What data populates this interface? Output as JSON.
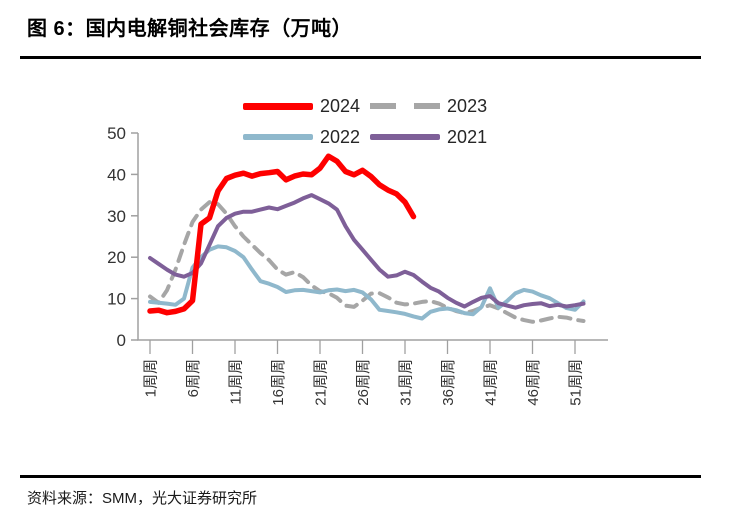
{
  "figure": {
    "title": "图 6：国内电解铜社会库存（万吨）",
    "source": "资料来源：SMM，光大证券研究所"
  },
  "chart_data": {
    "type": "line",
    "title": "国内电解铜社会库存（万吨）",
    "y_unit": "万吨",
    "x_unit": "周",
    "ylim": [
      0,
      50
    ],
    "y_ticks": [
      0,
      10,
      20,
      30,
      40,
      50
    ],
    "x_tick_weeks": [
      1,
      6,
      11,
      16,
      21,
      26,
      31,
      36,
      41,
      46,
      51
    ],
    "x_tick_labels": [
      "1周周",
      "6周周",
      "11周周",
      "16周周",
      "21周周",
      "26周周",
      "31周周",
      "36周周",
      "41周周",
      "46周周",
      "51周周"
    ],
    "grid": false,
    "legend_position": "top-center",
    "axis_color": "#a0a0a0",
    "tick_label_color": "#333333",
    "draw_order": [
      1,
      2,
      3,
      0
    ],
    "series": [
      {
        "name": "2024",
        "color": "#fe0000",
        "width": 5.5,
        "dash": null,
        "x_start_week": 1,
        "values": [
          7.0,
          7.2,
          6.6,
          6.9,
          7.5,
          9.5,
          28.0,
          29.5,
          36.0,
          39.0,
          39.8,
          40.3,
          39.6,
          40.2,
          40.4,
          40.7,
          38.7,
          39.6,
          40.1,
          39.9,
          41.5,
          44.4,
          43.2,
          40.7,
          39.9,
          41.0,
          39.5,
          37.5,
          36.2,
          35.3,
          33.3,
          29.8
        ]
      },
      {
        "name": "2023",
        "color": "#a6a6a6",
        "width": 4,
        "dash": [
          11,
          8
        ],
        "x_start_week": 1,
        "values": [
          10.5,
          9.0,
          12.0,
          17.0,
          23.0,
          28.5,
          31.5,
          33.3,
          32.8,
          30.5,
          27.5,
          25.0,
          23.0,
          21.0,
          19.3,
          17.0,
          15.8,
          16.4,
          15.2,
          13.2,
          11.8,
          11.3,
          10.2,
          8.3,
          8.0,
          9.5,
          11.2,
          11.3,
          10.3,
          9.0,
          8.6,
          8.8,
          9.2,
          9.4,
          8.8,
          7.8,
          7.0,
          6.5,
          7.0,
          7.8,
          8.4,
          7.6,
          6.5,
          5.4,
          4.8,
          4.4,
          4.7,
          5.2,
          5.6,
          5.4,
          4.9,
          4.6
        ]
      },
      {
        "name": "2022",
        "color": "#8fb8cc",
        "width": 4,
        "dash": null,
        "x_start_week": 1,
        "values": [
          9.2,
          9.0,
          8.8,
          8.5,
          10.0,
          17.5,
          20.0,
          21.8,
          22.6,
          22.4,
          21.5,
          20.0,
          17.0,
          14.2,
          13.6,
          12.8,
          11.6,
          12.0,
          12.1,
          11.8,
          11.5,
          12.0,
          12.2,
          11.8,
          12.1,
          11.5,
          9.8,
          7.3,
          7.0,
          6.7,
          6.3,
          5.7,
          5.2,
          6.8,
          7.4,
          7.6,
          7.2,
          6.5,
          6.2,
          8.0,
          12.5,
          7.8,
          9.4,
          11.3,
          12.1,
          11.7,
          10.8,
          10.1,
          8.9,
          7.7,
          7.3,
          9.3
        ]
      },
      {
        "name": "2021",
        "color": "#7e5f98",
        "width": 4,
        "dash": null,
        "x_start_week": 1,
        "values": [
          19.8,
          18.4,
          17.0,
          15.8,
          15.3,
          16.2,
          18.5,
          23.0,
          27.5,
          29.5,
          30.5,
          31.0,
          31.0,
          31.5,
          32.0,
          31.6,
          32.4,
          33.2,
          34.2,
          35.0,
          34.0,
          33.0,
          31.5,
          27.5,
          24.2,
          21.8,
          19.4,
          17.0,
          15.3,
          15.6,
          16.5,
          15.7,
          14.1,
          12.6,
          11.7,
          10.2,
          9.0,
          8.1,
          9.2,
          10.2,
          10.6,
          8.9,
          8.3,
          7.8,
          8.4,
          8.7,
          8.9,
          8.2,
          8.5,
          8.1,
          8.4,
          8.8
        ]
      }
    ]
  }
}
